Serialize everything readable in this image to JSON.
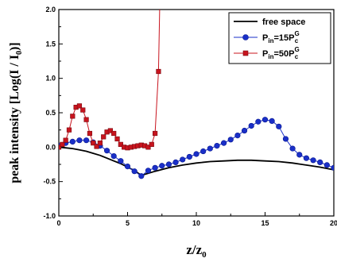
{
  "chart_data": {
    "type": "line",
    "xlim": [
      0,
      20
    ],
    "ylim": [
      -1.0,
      2.0
    ],
    "x_ticks": [
      "0",
      "5",
      "10",
      "15",
      "20"
    ],
    "y_ticks": [
      "-1.0",
      "-0.5",
      "0.0",
      "0.5",
      "1.0",
      "1.5",
      "2.0"
    ],
    "xlabel": {
      "main": "z/z",
      "sub": "0"
    },
    "ylabel": {
      "pre": "peak intensity [Log(I / I",
      "sub": "0",
      "post": ")]"
    },
    "legend_position": "top-right",
    "legend": [
      {
        "main": "free space",
        "sub": "",
        "sup": "",
        "tail": ""
      },
      {
        "main": "P",
        "sub": "in",
        "mid": "=15P",
        "sup": "G",
        "tail": "c"
      },
      {
        "main": "P",
        "sub": "in",
        "mid": "=50P",
        "sup": "G",
        "tail": "c"
      }
    ],
    "series": [
      {
        "marker": "none",
        "color": "#000000",
        "x": [
          0,
          0.5,
          1,
          1.5,
          2,
          2.5,
          3,
          3.5,
          4,
          4.5,
          5,
          5.5,
          6,
          7,
          8,
          9,
          10,
          11,
          12,
          13,
          14,
          15,
          16,
          17,
          18,
          19,
          20
        ],
        "y": [
          0.0,
          -0.01,
          -0.02,
          -0.04,
          -0.06,
          -0.09,
          -0.12,
          -0.16,
          -0.2,
          -0.24,
          -0.29,
          -0.34,
          -0.41,
          -0.35,
          -0.3,
          -0.26,
          -0.23,
          -0.21,
          -0.2,
          -0.19,
          -0.19,
          -0.2,
          -0.21,
          -0.23,
          -0.26,
          -0.29,
          -0.33
        ]
      },
      {
        "marker": "circle",
        "color": "#1a2fc8",
        "x": [
          0,
          0.5,
          1,
          1.5,
          2,
          2.5,
          3,
          3.5,
          4,
          4.5,
          5,
          5.5,
          6,
          6.5,
          7,
          7.5,
          8,
          8.5,
          9,
          9.5,
          10,
          10.5,
          11,
          11.5,
          12,
          12.5,
          13,
          13.5,
          14,
          14.5,
          15,
          15.5,
          16,
          16.5,
          17,
          17.5,
          18,
          18.5,
          19,
          19.5,
          20
        ],
        "y": [
          0.02,
          0.06,
          0.08,
          0.1,
          0.1,
          0.07,
          0.02,
          -0.05,
          -0.13,
          -0.2,
          -0.28,
          -0.35,
          -0.42,
          -0.34,
          -0.3,
          -0.27,
          -0.25,
          -0.22,
          -0.18,
          -0.14,
          -0.1,
          -0.06,
          -0.02,
          0.02,
          0.06,
          0.11,
          0.17,
          0.24,
          0.31,
          0.37,
          0.4,
          0.38,
          0.3,
          0.12,
          -0.02,
          -0.11,
          -0.16,
          -0.19,
          -0.22,
          -0.26,
          -0.3
        ]
      },
      {
        "marker": "square",
        "color": "#c8141e",
        "x": [
          0,
          0.25,
          0.5,
          0.75,
          1,
          1.25,
          1.5,
          1.75,
          2,
          2.25,
          2.5,
          2.75,
          3,
          3.25,
          3.5,
          3.75,
          4,
          4.25,
          4.5,
          4.75,
          5,
          5.25,
          5.5,
          5.75,
          6,
          6.25,
          6.5,
          6.75,
          7,
          7.25
        ],
        "y": [
          0.0,
          0.04,
          0.1,
          0.25,
          0.45,
          0.58,
          0.6,
          0.54,
          0.4,
          0.2,
          0.06,
          0.01,
          0.06,
          0.15,
          0.22,
          0.24,
          0.2,
          0.12,
          0.04,
          0.0,
          -0.01,
          0.0,
          0.01,
          0.02,
          0.03,
          0.02,
          0.0,
          0.04,
          0.2,
          1.1
        ]
      }
    ]
  }
}
